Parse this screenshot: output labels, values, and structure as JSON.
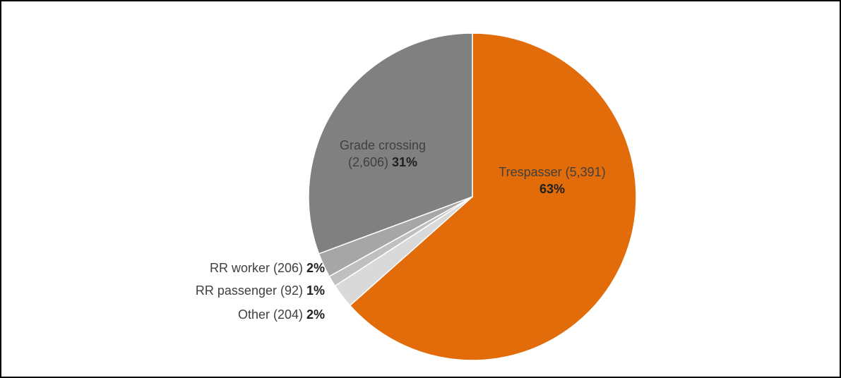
{
  "chart_data": {
    "type": "pie",
    "values": [
      5391,
      204,
      92,
      206,
      2606
    ],
    "value_labels": [
      "Trespasser (5,391)",
      "Other (204)",
      "RR passenger (92)",
      "RR worker (206)",
      "Grade crossing (2,606)"
    ],
    "percents": [
      63,
      2,
      1,
      2,
      31
    ],
    "percent_labels": [
      "63%",
      "2%",
      "1%",
      "2%",
      "31%"
    ],
    "colors": [
      "#e36c0a",
      "#d9d9d9",
      "#bfbfbf",
      "#a6a6a6",
      "#808080"
    ]
  }
}
